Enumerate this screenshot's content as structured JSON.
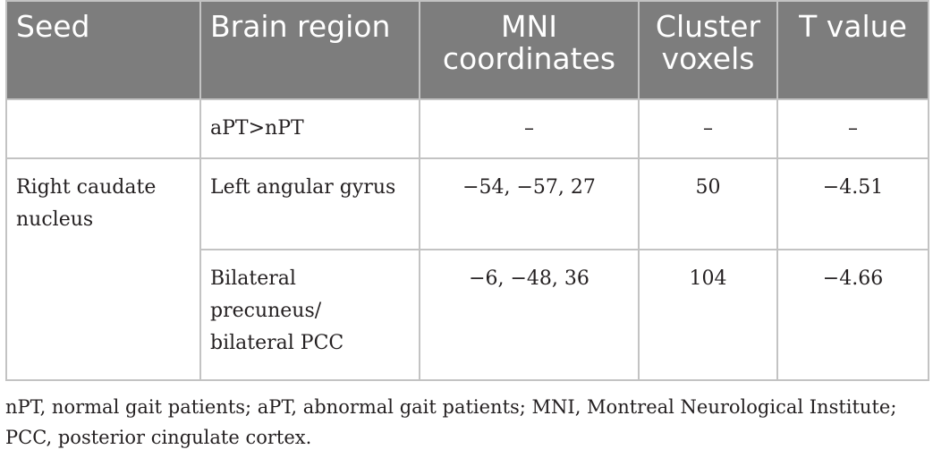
{
  "table": {
    "headers": {
      "seed": "Seed",
      "region": "Brain region",
      "mni": "MNI coordinates",
      "cluster": "Cluster voxels",
      "t": "T value"
    },
    "rows": [
      {
        "seed": "",
        "region": "aPT>nPT",
        "mni": "–",
        "cluster": "–",
        "t": "–"
      },
      {
        "seed": "Right caudate nucleus",
        "region": "Left angular gyrus",
        "mni": "−54, −57, 27",
        "cluster": "50",
        "t": "−4.51"
      },
      {
        "seed": "",
        "region": "Bilateral precuneus/ bilateral PCC",
        "mni": "−6, −48, 36",
        "cluster": "104",
        "t": "−4.66"
      }
    ]
  },
  "footnote": "nPT, normal gait patients; aPT, abnormal gait patients; MNI, Montreal Neurological Institute; PCC, posterior cingulate cortex."
}
